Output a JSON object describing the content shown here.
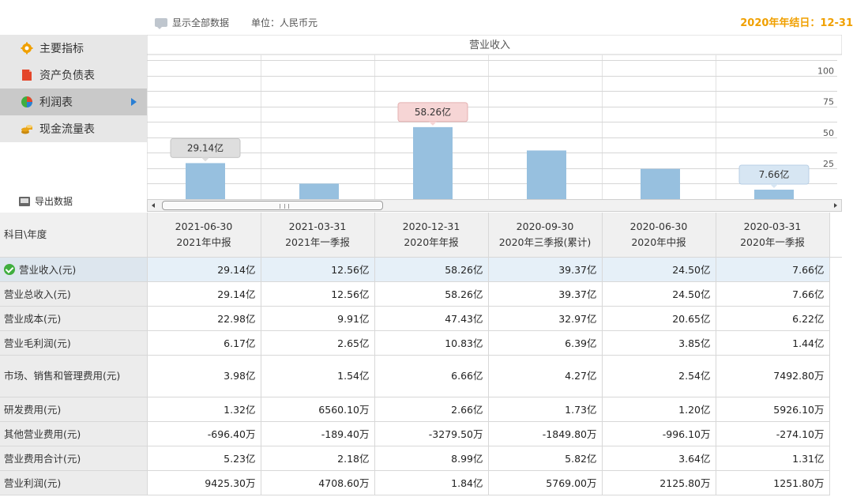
{
  "header": {
    "show_all_label": "显示全部数据",
    "unit_label": "单位：人民币元",
    "year_end_label": "2020年年结日：12-31"
  },
  "sidebar": {
    "items": [
      {
        "label": "主要指标",
        "icon": "gear-icon",
        "color": "#f0a000"
      },
      {
        "label": "资产负债表",
        "icon": "document-icon",
        "color": "#e4462a"
      },
      {
        "label": "利润表",
        "icon": "pie-chart-icon",
        "color": "#3fae3f"
      },
      {
        "label": "现金流量表",
        "icon": "coins-icon",
        "color": "#e8a317"
      }
    ],
    "active_index": 2,
    "export_label": "导出数据"
  },
  "chart_data": {
    "type": "bar",
    "title": "营业收入",
    "categories": [
      "2021-06-30",
      "2021-03-31",
      "2020-12-31",
      "2020-09-30",
      "2020-06-30",
      "2020-03-31"
    ],
    "values": [
      29.14,
      12.56,
      58.26,
      39.37,
      24.5,
      7.66
    ],
    "yticks": [
      25,
      50,
      75,
      100
    ],
    "ylim": [
      0,
      117
    ],
    "grid": true,
    "bar_color": "#97c0df",
    "data_labels": [
      {
        "index": 0,
        "text": "29.14亿",
        "style": "gray"
      },
      {
        "index": 2,
        "text": "58.26亿",
        "style": "red"
      },
      {
        "index": 5,
        "text": "7.66亿",
        "style": "blue"
      }
    ]
  },
  "table": {
    "corner_label": "科目\\年度",
    "columns": [
      {
        "date": "2021-06-30",
        "period": "2021年中报"
      },
      {
        "date": "2021-03-31",
        "period": "2021年一季报"
      },
      {
        "date": "2020-12-31",
        "period": "2020年年报"
      },
      {
        "date": "2020-09-30",
        "period": "2020年三季报(累计)"
      },
      {
        "date": "2020-06-30",
        "period": "2020年中报"
      },
      {
        "date": "2020-03-31",
        "period": "2020年一季报"
      }
    ],
    "rows": [
      {
        "label": "营业收入(元)",
        "values": [
          "29.14亿",
          "12.56亿",
          "58.26亿",
          "39.37亿",
          "24.50亿",
          "7.66亿"
        ],
        "selected": true
      },
      {
        "label": "营业总收入(元)",
        "values": [
          "29.14亿",
          "12.56亿",
          "58.26亿",
          "39.37亿",
          "24.50亿",
          "7.66亿"
        ]
      },
      {
        "label": "营业成本(元)",
        "values": [
          "22.98亿",
          "9.91亿",
          "47.43亿",
          "32.97亿",
          "20.65亿",
          "6.22亿"
        ]
      },
      {
        "label": "营业毛利润(元)",
        "values": [
          "6.17亿",
          "2.65亿",
          "10.83亿",
          "6.39亿",
          "3.85亿",
          "1.44亿"
        ]
      },
      {
        "label": "市场、销售和管理费用(元)",
        "values": [
          "3.98亿",
          "1.54亿",
          "6.66亿",
          "4.27亿",
          "2.54亿",
          "7492.80万"
        ],
        "tall": true
      },
      {
        "label": "研发费用(元)",
        "values": [
          "1.32亿",
          "6560.10万",
          "2.66亿",
          "1.73亿",
          "1.20亿",
          "5926.10万"
        ]
      },
      {
        "label": "其他营业费用(元)",
        "values": [
          "-696.40万",
          "-189.40万",
          "-3279.50万",
          "-1849.80万",
          "-996.10万",
          "-274.10万"
        ]
      },
      {
        "label": "营业费用合计(元)",
        "values": [
          "5.23亿",
          "2.18亿",
          "8.99亿",
          "5.82亿",
          "3.64亿",
          "1.31亿"
        ]
      },
      {
        "label": "营业利润(元)",
        "values": [
          "9425.30万",
          "4708.60万",
          "1.84亿",
          "5769.00万",
          "2125.80万",
          "1251.80万"
        ]
      }
    ]
  }
}
